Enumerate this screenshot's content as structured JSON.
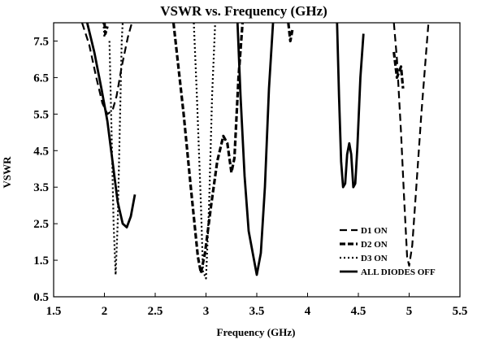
{
  "chart_data": {
    "type": "line",
    "title": "VSWR vs. Frequency (GHz)",
    "xlabel": "Frequency (GHz)",
    "ylabel": "VSWR",
    "xlim": [
      1.5,
      5.5
    ],
    "ylim": [
      0.5,
      8.0
    ],
    "xticks": [
      "1.5",
      "2",
      "2.5",
      "3",
      "3.5",
      "4",
      "4.5",
      "5",
      "5.5"
    ],
    "yticks": [
      "0.5",
      "1.5",
      "2.5",
      "3.5",
      "4.5",
      "5.5",
      "6.5",
      "7.5"
    ],
    "grid": false,
    "legend_position": "bottom-right",
    "series": [
      {
        "name": "D1 ON",
        "style": "dashed",
        "segments": [
          [
            [
              1.78,
              8.0
            ],
            [
              1.85,
              7.4
            ],
            [
              1.92,
              6.5
            ],
            [
              1.98,
              5.8
            ],
            [
              2.03,
              5.5
            ],
            [
              2.08,
              5.6
            ],
            [
              2.12,
              6.0
            ],
            [
              2.17,
              6.8
            ],
            [
              2.23,
              7.6
            ],
            [
              2.27,
              8.0
            ]
          ],
          [
            [
              4.85,
              8.0
            ],
            [
              4.88,
              7.0
            ],
            [
              4.92,
              5.0
            ],
            [
              4.95,
              3.2
            ],
            [
              4.98,
              1.6
            ],
            [
              5.0,
              1.35
            ],
            [
              5.03,
              1.9
            ],
            [
              5.07,
              3.5
            ],
            [
              5.12,
              5.5
            ],
            [
              5.17,
              7.3
            ],
            [
              5.19,
              8.0
            ]
          ]
        ]
      },
      {
        "name": "D2 ON",
        "style": "long-dash",
        "segments": [
          [
            [
              2.0,
              8.0
            ],
            [
              2.01,
              7.7
            ],
            [
              2.03,
              7.9
            ]
          ],
          [
            [
              2.68,
              8.0
            ],
            [
              2.72,
              7.0
            ],
            [
              2.78,
              5.5
            ],
            [
              2.85,
              3.5
            ],
            [
              2.92,
              1.6
            ],
            [
              2.95,
              1.15
            ],
            [
              2.99,
              1.7
            ],
            [
              3.05,
              3.0
            ],
            [
              3.11,
              4.2
            ],
            [
              3.17,
              4.9
            ],
            [
              3.21,
              4.7
            ],
            [
              3.25,
              3.9
            ],
            [
              3.28,
              4.3
            ],
            [
              3.32,
              6.5
            ],
            [
              3.36,
              8.0
            ]
          ],
          [
            [
              3.81,
              8.0
            ],
            [
              3.83,
              7.5
            ],
            [
              3.85,
              7.8
            ]
          ],
          [
            [
              4.85,
              7.2
            ],
            [
              4.88,
              6.5
            ],
            [
              4.92,
              6.8
            ],
            [
              4.94,
              6.2
            ]
          ]
        ]
      },
      {
        "name": "D3 ON",
        "style": "dotted",
        "segments": [
          [
            [
              1.99,
              8.0
            ],
            [
              2.0,
              7.6
            ],
            [
              2.01,
              7.9
            ]
          ],
          [
            [
              2.05,
              7.5
            ],
            [
              2.07,
              5.0
            ],
            [
              2.09,
              2.5
            ],
            [
              2.11,
              1.1
            ],
            [
              2.13,
              2.5
            ],
            [
              2.15,
              5.0
            ],
            [
              2.17,
              7.5
            ],
            [
              2.18,
              8.0
            ]
          ],
          [
            [
              2.88,
              8.0
            ],
            [
              2.91,
              6.0
            ],
            [
              2.95,
              3.0
            ],
            [
              2.97,
              1.2
            ],
            [
              3.0,
              1.0
            ],
            [
              3.03,
              3.0
            ],
            [
              3.06,
              6.0
            ],
            [
              3.09,
              8.0
            ]
          ]
        ]
      },
      {
        "name": "ALL  DIODES OFF",
        "style": "solid",
        "segments": [
          [
            [
              1.83,
              8.0
            ],
            [
              1.9,
              7.2
            ],
            [
              1.97,
              6.2
            ],
            [
              2.03,
              5.3
            ],
            [
              2.08,
              4.2
            ],
            [
              2.13,
              3.1
            ],
            [
              2.18,
              2.5
            ],
            [
              2.22,
              2.4
            ],
            [
              2.26,
              2.7
            ],
            [
              2.3,
              3.3
            ]
          ],
          [
            [
              3.31,
              8.0
            ],
            [
              3.34,
              6.0
            ],
            [
              3.38,
              3.8
            ],
            [
              3.42,
              2.3
            ],
            [
              3.46,
              1.7
            ],
            [
              3.5,
              1.1
            ],
            [
              3.54,
              1.7
            ],
            [
              3.58,
              3.5
            ],
            [
              3.62,
              6.2
            ],
            [
              3.66,
              8.0
            ]
          ],
          [
            [
              4.29,
              8.0
            ],
            [
              4.31,
              6.0
            ],
            [
              4.33,
              4.2
            ],
            [
              4.35,
              3.5
            ],
            [
              4.37,
              3.6
            ],
            [
              4.39,
              4.4
            ],
            [
              4.41,
              4.7
            ],
            [
              4.43,
              4.4
            ],
            [
              4.45,
              3.5
            ],
            [
              4.47,
              3.6
            ],
            [
              4.49,
              4.6
            ],
            [
              4.52,
              6.5
            ],
            [
              4.55,
              7.7
            ]
          ]
        ]
      }
    ]
  }
}
